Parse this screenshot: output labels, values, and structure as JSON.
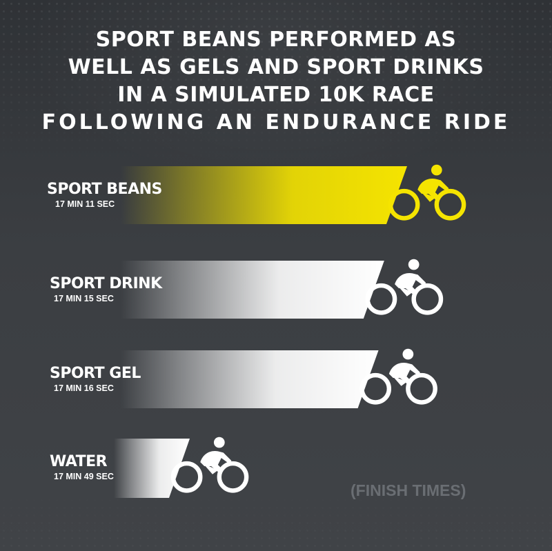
{
  "headline": {
    "lines": [
      "SPORT BEANS PERFORMED AS",
      "WELL AS GELS AND SPORT DRINKS",
      "IN A SIMULATED 10K RACE",
      "FOLLOWING AN ENDURANCE RIDE"
    ]
  },
  "footnote": "(FINISH TIMES)",
  "colors": {
    "background": "#3a3d41",
    "highlight": "#f5e400",
    "bar_neutral": "#ffffff",
    "footnote": "#6a6e73"
  },
  "icons": {
    "rider": "cyclist-icon"
  },
  "chart_data": {
    "type": "bar",
    "orientation": "horizontal",
    "title": "SPORT BEANS PERFORMED AS WELL AS GELS AND SPORT DRINKS IN A SIMULATED 10K RACE FOLLOWING AN ENDURANCE RIDE",
    "categories": [
      "SPORT BEANS",
      "SPORT DRINK",
      "SPORT GEL",
      "WATER"
    ],
    "value_labels": [
      "17 MIN 11 SEC",
      "17 MIN 15 SEC",
      "17 MIN 16 SEC",
      "17 MIN 49 SEC"
    ],
    "values_seconds": [
      1031,
      1035,
      1036,
      1069
    ],
    "highlight": [
      "#f5e400",
      "#ffffff",
      "#ffffff",
      "#ffffff"
    ],
    "note": "(FINISH TIMES)",
    "lower_is_better": true
  }
}
